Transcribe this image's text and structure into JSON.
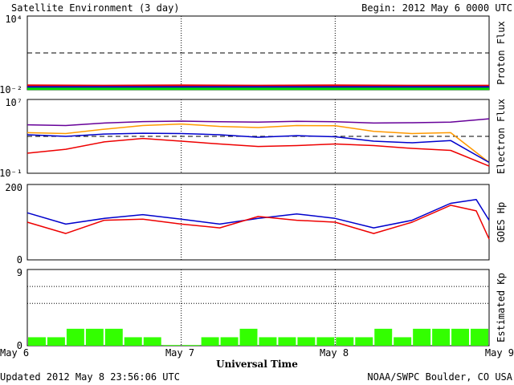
{
  "header": {
    "title": "Satellite Environment (3 day)",
    "begin": "Begin:  2012 May 6 0000 UTC"
  },
  "footer": {
    "updated": "Updated 2012 May  8 23:56:06 UTC",
    "credit": "NOAA/SWPC Boulder, CO USA"
  },
  "xaxis": {
    "title": "Universal Time",
    "ticks": [
      "May 6",
      "May 7",
      "May 8",
      "May 9"
    ],
    "range_hours": [
      0,
      72
    ]
  },
  "colors": {
    "red": "#ee0000",
    "blue": "#0000cc",
    "green": "#00dd00",
    "purple": "#660099",
    "orange": "#ff9900",
    "bar": "#33ff00"
  },
  "chart_data": [
    {
      "type": "line",
      "panel": "proton",
      "ylabel": "Proton Flux",
      "yscale": "log",
      "ylim": [
        0.01,
        10000
      ],
      "ytick_labels": [
        "10⁴",
        "10⁻²"
      ],
      "threshold": 10,
      "series": [
        {
          "color": "red",
          "x": [
            0,
            12,
            24,
            36,
            48,
            60,
            72
          ],
          "y": [
            0.022,
            0.021,
            0.022,
            0.021,
            0.022,
            0.021,
            0.021
          ]
        },
        {
          "color": "blue",
          "x": [
            0,
            12,
            24,
            36,
            48,
            60,
            72
          ],
          "y": [
            0.016,
            0.016,
            0.016,
            0.016,
            0.016,
            0.016,
            0.016
          ]
        },
        {
          "color": "green",
          "x": [
            0,
            12,
            24,
            36,
            48,
            60,
            72
          ],
          "y": [
            0.012,
            0.012,
            0.012,
            0.012,
            0.012,
            0.012,
            0.012
          ]
        }
      ]
    },
    {
      "type": "line",
      "panel": "electron",
      "ylabel": "Electron Flux",
      "yscale": "log",
      "ylim": [
        0.1,
        10000000
      ],
      "ytick_labels": [
        "10⁷",
        "10⁻¹"
      ],
      "threshold": 1000,
      "series": [
        {
          "color": "purple",
          "x": [
            0,
            6,
            12,
            18,
            24,
            30,
            36,
            42,
            48,
            54,
            60,
            66,
            72
          ],
          "y": [
            18000,
            15000,
            28000,
            40000,
            45000,
            38000,
            35000,
            42000,
            38000,
            28000,
            30000,
            35000,
            80000
          ]
        },
        {
          "color": "orange",
          "x": [
            0,
            6,
            12,
            18,
            24,
            30,
            36,
            42,
            48,
            54,
            60,
            66,
            72
          ],
          "y": [
            2500,
            2000,
            6000,
            15000,
            22000,
            12000,
            9000,
            15000,
            14000,
            3500,
            2000,
            2500,
            1.5
          ]
        },
        {
          "color": "blue",
          "x": [
            0,
            6,
            12,
            18,
            24,
            30,
            36,
            42,
            48,
            54,
            60,
            66,
            72
          ],
          "y": [
            1500,
            1000,
            1800,
            2200,
            2000,
            1500,
            800,
            1200,
            900,
            300,
            200,
            350,
            1.5
          ]
        },
        {
          "color": "red",
          "x": [
            0,
            6,
            12,
            18,
            24,
            30,
            36,
            42,
            48,
            54,
            60,
            66,
            72
          ],
          "y": [
            15,
            40,
            250,
            600,
            300,
            150,
            80,
            100,
            150,
            100,
            50,
            30,
            0.6
          ]
        }
      ]
    },
    {
      "type": "line",
      "panel": "goes_hp",
      "ylabel": "GOES Hp",
      "yscale": "linear",
      "ylim": [
        0,
        200
      ],
      "ytick_labels": [
        "200",
        "0"
      ],
      "series": [
        {
          "color": "blue",
          "x": [
            0,
            6,
            12,
            18,
            24,
            30,
            36,
            42,
            48,
            54,
            60,
            66,
            70,
            72
          ],
          "y": [
            125,
            95,
            110,
            120,
            108,
            95,
            110,
            122,
            110,
            85,
            105,
            150,
            160,
            105
          ]
        },
        {
          "color": "red",
          "x": [
            0,
            6,
            12,
            18,
            24,
            30,
            36,
            42,
            48,
            54,
            60,
            66,
            70,
            72
          ],
          "y": [
            100,
            70,
            105,
            108,
            95,
            85,
            115,
            105,
            100,
            70,
            100,
            145,
            130,
            55
          ]
        }
      ]
    },
    {
      "type": "bar",
      "panel": "kp",
      "ylabel": "Estimated Kp",
      "yscale": "linear",
      "ylim": [
        0,
        9
      ],
      "ytick_labels": [
        "9",
        "0"
      ],
      "values": [
        1,
        1,
        2,
        2,
        2,
        1,
        1,
        0,
        0,
        1,
        1,
        2,
        1,
        1,
        1,
        1,
        1,
        1,
        2,
        1,
        2,
        2,
        2,
        2
      ]
    }
  ]
}
